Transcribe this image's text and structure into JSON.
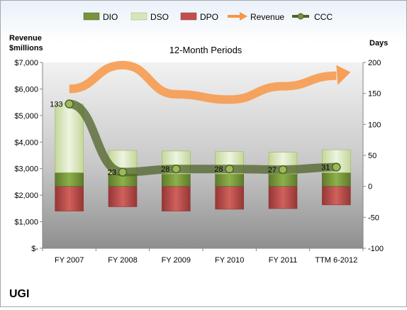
{
  "chart_data": {
    "type": "bar",
    "title": "12-Month Periods",
    "company": "UGI",
    "categories": [
      "FY 2007",
      "FY 2008",
      "FY 2009",
      "FY 2010",
      "FY 2011",
      "TTM 6-2012"
    ],
    "left_axis": {
      "title_line1": "Revenue",
      "title_line2": "$millions",
      "ticks": [
        "$-",
        "$1,000",
        "$2,000",
        "$3,000",
        "$4,000",
        "$5,000",
        "$6,000",
        "$7,000"
      ],
      "range": [
        0,
        7000
      ]
    },
    "right_axis": {
      "title": "Days",
      "ticks": [
        "-100",
        "-50",
        "0",
        "50",
        "100",
        "150",
        "200"
      ],
      "range": [
        -100,
        200
      ]
    },
    "legend": [
      "DIO",
      "DSO",
      "DPO",
      "Revenue",
      "CCC"
    ],
    "legend_position": "top",
    "grid": false,
    "series_days": {
      "DIO": [
        22,
        20,
        20,
        20,
        20,
        22
      ],
      "DSO": [
        111,
        38,
        37,
        36,
        35,
        37
      ],
      "DPO": [
        -40,
        -33,
        -40,
        -37,
        -36,
        -30
      ],
      "CCC": [
        133,
        23,
        28,
        28,
        27,
        31
      ]
    },
    "ccc_labels": [
      "133",
      "23",
      "28",
      "28",
      "27",
      "31"
    ],
    "revenue_millions": [
      6000,
      6900,
      5800,
      5600,
      6100,
      6500
    ],
    "colors": {
      "DIO": "#77933c",
      "DSO": "#d7e4bd",
      "DPO": "#c0504d",
      "Revenue": "#f79646",
      "CCC": "#4f6228"
    }
  }
}
